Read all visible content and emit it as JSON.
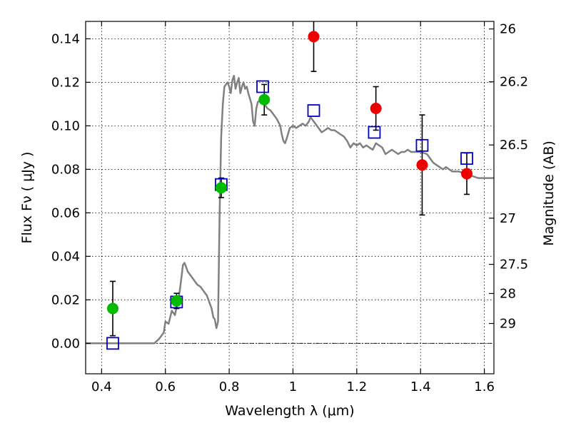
{
  "chart_data": {
    "type": "scatter",
    "xlabel": "Wavelength  λ (μm)",
    "ylabel": "Flux  Fν  ( μJy )",
    "y2label": "Magnitude (AB)",
    "xlim": [
      0.35,
      1.63
    ],
    "ylim": [
      -0.014,
      0.148
    ],
    "x_ticks": [
      0.4,
      0.6,
      0.8,
      1.0,
      1.2,
      1.4,
      1.6
    ],
    "x_tick_labels": [
      "0.4",
      "0.6",
      "0.8",
      "1",
      "1.2",
      "1.4",
      "1.6"
    ],
    "y_ticks": [
      0.0,
      0.02,
      0.04,
      0.06,
      0.08,
      0.1,
      0.12,
      0.14
    ],
    "y_tick_labels": [
      "0.00",
      "0.02",
      "0.04",
      "0.06",
      "0.08",
      "0.10",
      "0.12",
      "0.14"
    ],
    "y2_ticks": [
      26,
      26.2,
      26.5,
      27,
      27.5,
      28,
      29
    ],
    "y2_tick_labels": [
      "26",
      "26.2",
      "26.5",
      "27",
      "27.5",
      "28",
      "29"
    ],
    "grid": true,
    "series": [
      {
        "kind": "model-line",
        "color": "#808080",
        "points": [
          [
            0.35,
            0.0
          ],
          [
            0.565,
            0.0
          ],
          [
            0.58,
            0.002
          ],
          [
            0.595,
            0.005
          ],
          [
            0.6,
            0.01
          ],
          [
            0.61,
            0.009
          ],
          [
            0.62,
            0.015
          ],
          [
            0.63,
            0.013
          ],
          [
            0.64,
            0.02
          ],
          [
            0.645,
            0.024
          ],
          [
            0.65,
            0.03
          ],
          [
            0.655,
            0.036
          ],
          [
            0.66,
            0.037
          ],
          [
            0.665,
            0.035
          ],
          [
            0.67,
            0.033
          ],
          [
            0.68,
            0.031
          ],
          [
            0.69,
            0.029
          ],
          [
            0.7,
            0.027
          ],
          [
            0.71,
            0.026
          ],
          [
            0.72,
            0.024
          ],
          [
            0.73,
            0.022
          ],
          [
            0.74,
            0.018
          ],
          [
            0.745,
            0.016
          ],
          [
            0.75,
            0.012
          ],
          [
            0.755,
            0.011
          ],
          [
            0.76,
            0.007
          ],
          [
            0.765,
            0.01
          ],
          [
            0.77,
            0.06
          ],
          [
            0.775,
            0.095
          ],
          [
            0.78,
            0.11
          ],
          [
            0.785,
            0.118
          ],
          [
            0.79,
            0.119
          ],
          [
            0.795,
            0.12
          ],
          [
            0.8,
            0.118
          ],
          [
            0.805,
            0.115
          ],
          [
            0.81,
            0.121
          ],
          [
            0.815,
            0.123
          ],
          [
            0.82,
            0.117
          ],
          [
            0.825,
            0.12
          ],
          [
            0.83,
            0.122
          ],
          [
            0.835,
            0.115
          ],
          [
            0.84,
            0.118
          ],
          [
            0.845,
            0.12
          ],
          [
            0.85,
            0.117
          ],
          [
            0.855,
            0.118
          ],
          [
            0.86,
            0.115
          ],
          [
            0.87,
            0.11
          ],
          [
            0.875,
            0.102
          ],
          [
            0.88,
            0.1
          ],
          [
            0.885,
            0.108
          ],
          [
            0.89,
            0.111
          ],
          [
            0.9,
            0.112
          ],
          [
            0.91,
            0.11
          ],
          [
            0.92,
            0.108
          ],
          [
            0.93,
            0.107
          ],
          [
            0.94,
            0.105
          ],
          [
            0.95,
            0.103
          ],
          [
            0.96,
            0.1
          ],
          [
            0.965,
            0.096
          ],
          [
            0.97,
            0.093
          ],
          [
            0.975,
            0.092
          ],
          [
            0.98,
            0.094
          ],
          [
            0.99,
            0.099
          ],
          [
            1.0,
            0.1
          ],
          [
            1.01,
            0.099
          ],
          [
            1.02,
            0.1
          ],
          [
            1.03,
            0.101
          ],
          [
            1.04,
            0.1
          ],
          [
            1.05,
            0.102
          ],
          [
            1.055,
            0.104
          ],
          [
            1.06,
            0.103
          ],
          [
            1.07,
            0.101
          ],
          [
            1.08,
            0.099
          ],
          [
            1.09,
            0.097
          ],
          [
            1.1,
            0.098
          ],
          [
            1.11,
            0.099
          ],
          [
            1.12,
            0.098
          ],
          [
            1.13,
            0.098
          ],
          [
            1.14,
            0.097
          ],
          [
            1.15,
            0.096
          ],
          [
            1.16,
            0.095
          ],
          [
            1.17,
            0.093
          ],
          [
            1.18,
            0.09
          ],
          [
            1.19,
            0.092
          ],
          [
            1.2,
            0.091
          ],
          [
            1.21,
            0.092
          ],
          [
            1.22,
            0.09
          ],
          [
            1.23,
            0.091
          ],
          [
            1.24,
            0.09
          ],
          [
            1.25,
            0.089
          ],
          [
            1.26,
            0.092
          ],
          [
            1.27,
            0.091
          ],
          [
            1.28,
            0.09
          ],
          [
            1.29,
            0.087
          ],
          [
            1.3,
            0.088
          ],
          [
            1.31,
            0.089
          ],
          [
            1.32,
            0.088
          ],
          [
            1.33,
            0.087
          ],
          [
            1.34,
            0.088
          ],
          [
            1.35,
            0.088
          ],
          [
            1.36,
            0.089
          ],
          [
            1.37,
            0.088
          ],
          [
            1.38,
            0.088
          ],
          [
            1.4,
            0.088
          ],
          [
            1.42,
            0.087
          ],
          [
            1.43,
            0.085
          ],
          [
            1.44,
            0.083
          ],
          [
            1.45,
            0.082
          ],
          [
            1.46,
            0.081
          ],
          [
            1.47,
            0.08
          ],
          [
            1.48,
            0.081
          ],
          [
            1.49,
            0.08
          ],
          [
            1.5,
            0.079
          ],
          [
            1.52,
            0.079
          ],
          [
            1.54,
            0.078
          ],
          [
            1.56,
            0.077
          ],
          [
            1.58,
            0.076
          ],
          [
            1.6,
            0.076
          ],
          [
            1.63,
            0.076
          ]
        ]
      },
      {
        "kind": "model-photometry",
        "marker": "open-square",
        "color": "#0000cc",
        "x": [
          0.435,
          0.635,
          0.775,
          0.905,
          1.065,
          1.255,
          1.405,
          1.545
        ],
        "y": [
          0.0,
          0.019,
          0.073,
          0.118,
          0.107,
          0.097,
          0.091,
          0.085
        ]
      },
      {
        "kind": "observed-points",
        "marker": "filled-circle",
        "color": "#00bb00",
        "x": [
          0.435,
          0.635,
          0.775,
          0.91
        ],
        "y": [
          0.016,
          0.0195,
          0.0715,
          0.112
        ],
        "err": [
          0.0125,
          0.0035,
          0.0045,
          0.007
        ]
      },
      {
        "kind": "observed-points",
        "marker": "filled-circle",
        "color": "#ee0000",
        "x": [
          1.065,
          1.26,
          1.405,
          1.545
        ],
        "y": [
          0.141,
          0.108,
          0.082,
          0.078
        ],
        "err": [
          0.016,
          0.01,
          0.023,
          0.0095
        ]
      }
    ]
  }
}
